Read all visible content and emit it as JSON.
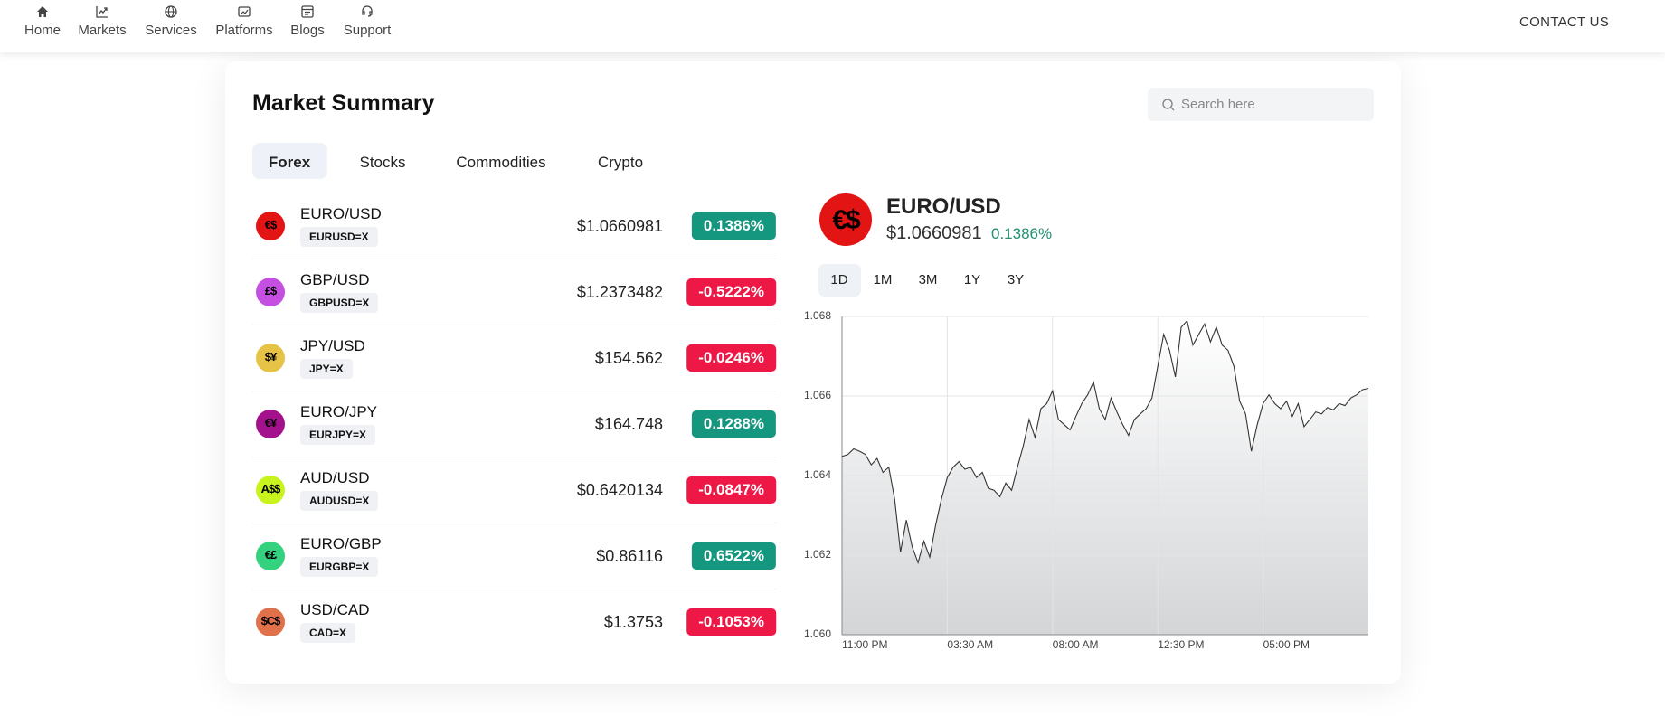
{
  "nav": {
    "items": [
      "Home",
      "Markets",
      "Services",
      "Platforms",
      "Blogs",
      "Support"
    ],
    "contact": "CONTACT US"
  },
  "summary": {
    "title": "Market Summary",
    "search_placeholder": "Search here",
    "tabs": [
      "Forex",
      "Stocks",
      "Commodities",
      "Crypto"
    ],
    "rows": [
      {
        "icon": "€$",
        "icon_color": "#e31414",
        "name": "EURO/USD",
        "symbol": "EURUSD=X",
        "price": "$1.0660981",
        "change": "0.1386%",
        "change_color": "#14977e"
      },
      {
        "icon": "£$",
        "icon_color": "#c54fe0",
        "name": "GBP/USD",
        "symbol": "GBPUSD=X",
        "price": "$1.2373482",
        "change": "-0.5222%",
        "change_color": "#ee1846"
      },
      {
        "icon": "$¥",
        "icon_color": "#e6c246",
        "name": "JPY/USD",
        "symbol": "JPY=X",
        "price": "$154.562",
        "change": "-0.0246%",
        "change_color": "#ee1846"
      },
      {
        "icon": "€¥",
        "icon_color": "#a3128c",
        "name": "EURO/JPY",
        "symbol": "EURJPY=X",
        "price": "$164.748",
        "change": "0.1288%",
        "change_color": "#14977e"
      },
      {
        "icon": "A$$",
        "icon_color": "#c9f31f",
        "name": "AUD/USD",
        "symbol": "AUDUSD=X",
        "price": "$0.6420134",
        "change": "-0.0847%",
        "change_color": "#ee1846"
      },
      {
        "icon": "€£",
        "icon_color": "#34d27f",
        "name": "EURO/GBP",
        "symbol": "EURGBP=X",
        "price": "$0.86116",
        "change": "0.6522%",
        "change_color": "#14977e"
      },
      {
        "icon": "$C$",
        "icon_color": "#e0714a",
        "name": "USD/CAD",
        "symbol": "CAD=X",
        "price": "$1.3753",
        "change": "-0.1053%",
        "change_color": "#ee1846"
      }
    ]
  },
  "detail": {
    "icon": "€$",
    "icon_color": "#e31414",
    "name": "EURO/USD",
    "price": "$1.0660981",
    "change": "0.1386%",
    "change_color": "#21906f",
    "ranges": [
      "1D",
      "1M",
      "3M",
      "1Y",
      "3Y"
    ]
  },
  "chart_data": {
    "type": "area",
    "color": "#333333",
    "categories": [
      "11:00 PM",
      null,
      null,
      null,
      null,
      null,
      null,
      null,
      null,
      null,
      null,
      null,
      null,
      null,
      null,
      null,
      null,
      null,
      "03:30 AM",
      null,
      null,
      null,
      null,
      null,
      null,
      null,
      null,
      null,
      null,
      null,
      null,
      null,
      null,
      null,
      null,
      null,
      "08:00 AM",
      null,
      null,
      null,
      null,
      null,
      null,
      null,
      null,
      null,
      null,
      null,
      null,
      null,
      null,
      null,
      null,
      null,
      "12:30 PM",
      null,
      null,
      null,
      null,
      null,
      null,
      null,
      null,
      null,
      null,
      null,
      null,
      null,
      null,
      null,
      null,
      null,
      "05:00 PM",
      null,
      null,
      null,
      null,
      null,
      null,
      null,
      null,
      null,
      null,
      null,
      null,
      null,
      null,
      null,
      null,
      null,
      null
    ],
    "values": [
      1.06448,
      1.06453,
      1.06467,
      1.06461,
      1.06453,
      1.06427,
      1.06443,
      1.06408,
      1.06421,
      1.06341,
      1.06208,
      1.06288,
      1.06221,
      1.06181,
      1.06235,
      1.06195,
      1.06275,
      1.06341,
      1.06395,
      1.06421,
      1.06435,
      1.06416,
      1.06421,
      1.06395,
      1.06408,
      1.06368,
      1.06363,
      1.06347,
      1.06381,
      1.06363,
      1.06421,
      1.06475,
      1.06541,
      1.06496,
      1.06568,
      1.06581,
      1.06613,
      1.06541,
      1.06528,
      1.06515,
      1.06549,
      1.06581,
      1.06603,
      1.06635,
      1.06568,
      1.06541,
      1.06595,
      1.0656,
      1.06528,
      1.06501,
      1.06541,
      1.06555,
      1.06568,
      1.06595,
      1.06675,
      1.06755,
      1.06715,
      1.06648,
      1.06773,
      1.06789,
      1.06728,
      1.06755,
      1.06781,
      1.06736,
      1.06773,
      1.06728,
      1.06715,
      1.06675,
      1.06587,
      1.06555,
      1.06461,
      1.06528,
      1.06581,
      1.06603,
      1.06581,
      1.06568,
      1.06587,
      1.06549,
      1.06581,
      1.06523,
      1.06541,
      1.0656,
      1.06555,
      1.06571,
      1.06565,
      1.06581,
      1.06576,
      1.06595,
      1.06603,
      1.06616,
      1.06619
    ],
    "ylim": [
      1.06,
      1.068
    ],
    "yticks": [
      {
        "value": 1.06,
        "label": "1.060"
      },
      1.062,
      1.064,
      1.066,
      1.068
    ],
    "grid": true
  }
}
